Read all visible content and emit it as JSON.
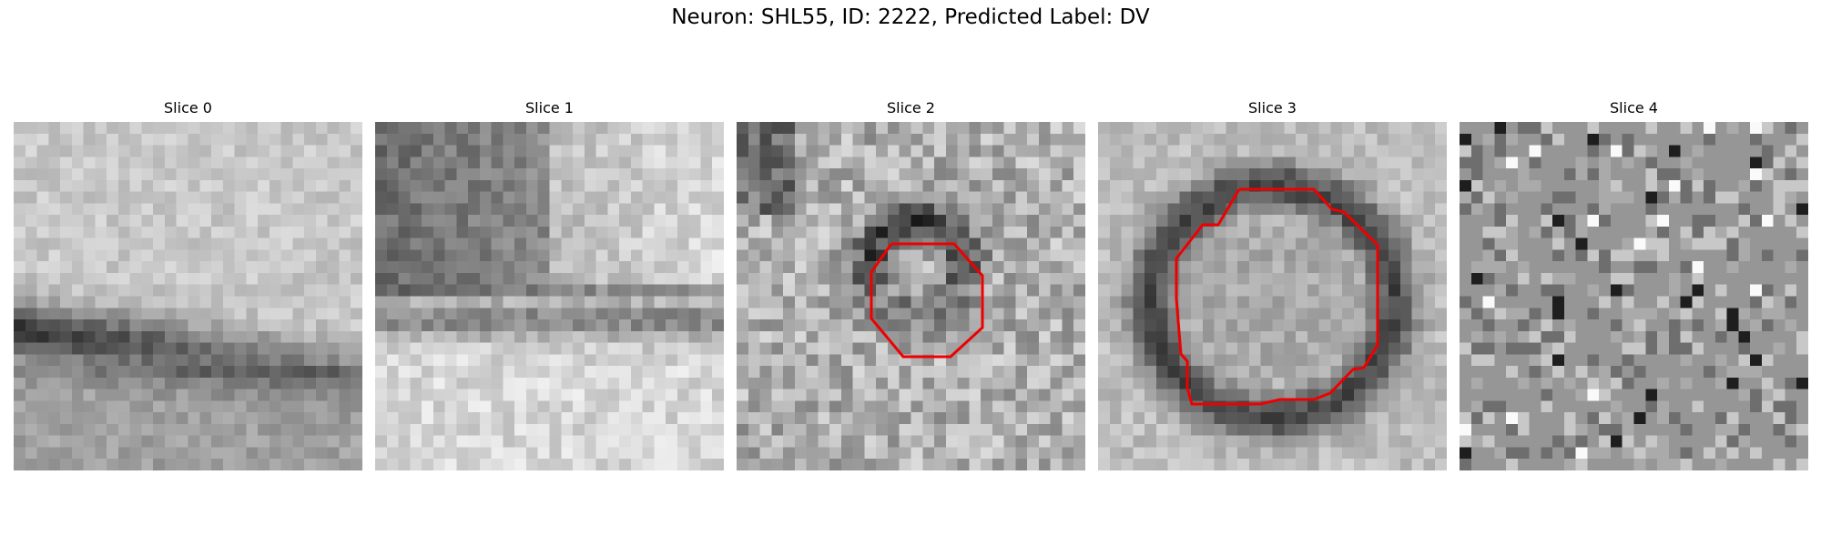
{
  "figure": {
    "suptitle": "Neuron: SHL55, ID: 2222, Predicted Label: DV"
  },
  "panels": [
    {
      "title": "Slice 0"
    },
    {
      "title": "Slice 1"
    },
    {
      "title": "Slice 2"
    },
    {
      "title": "Slice 3"
    },
    {
      "title": "Slice 4"
    }
  ],
  "colors": {
    "contour": "#ff0000",
    "background": "#ffffff"
  },
  "colormap": "grayscale"
}
